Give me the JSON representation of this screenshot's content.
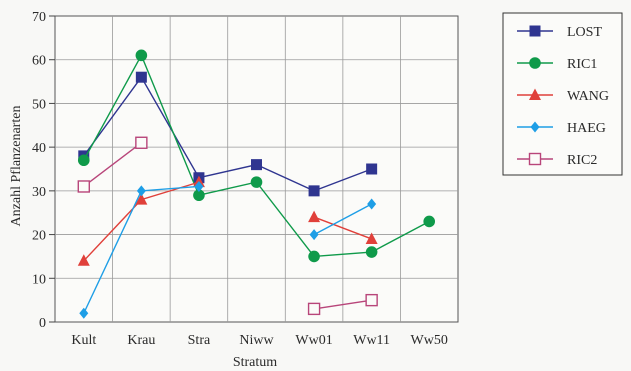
{
  "chart_data": {
    "type": "line",
    "title": "",
    "xlabel": "Stratum",
    "ylabel": "Anzahl Pflanzenarten",
    "categories": [
      "Kult",
      "Krau",
      "Stra",
      "Niww",
      "Ww01",
      "Ww11",
      "Ww50"
    ],
    "ylim": [
      0,
      70
    ],
    "yticks": [
      "0",
      "10",
      "20",
      "30",
      "40",
      "50",
      "60",
      "70"
    ],
    "grid": true,
    "legend_position": "right",
    "series": [
      {
        "name": "LOST",
        "color": "#2f3590",
        "marker": "square",
        "segments": [
          [
            {
              "x": "Kult",
              "y": 38
            },
            {
              "x": "Krau",
              "y": 56
            },
            {
              "x": "Stra",
              "y": 33
            },
            {
              "x": "Niww",
              "y": 36
            },
            {
              "x": "Ww01",
              "y": 30
            },
            {
              "x": "Ww11",
              "y": 35
            }
          ]
        ]
      },
      {
        "name": "RIC1",
        "color": "#0f9a4a",
        "marker": "circle",
        "segments": [
          [
            {
              "x": "Kult",
              "y": 37
            },
            {
              "x": "Krau",
              "y": 61
            },
            {
              "x": "Stra",
              "y": 29
            },
            {
              "x": "Niww",
              "y": 32
            },
            {
              "x": "Ww01",
              "y": 15
            },
            {
              "x": "Ww11",
              "y": 16
            },
            {
              "x": "Ww50",
              "y": 23
            }
          ]
        ]
      },
      {
        "name": "WANG",
        "color": "#e0403a",
        "marker": "triangle",
        "segments": [
          [
            {
              "x": "Kult",
              "y": 14
            },
            {
              "x": "Krau",
              "y": 28
            },
            {
              "x": "Stra",
              "y": 32
            }
          ],
          [
            {
              "x": "Ww01",
              "y": 24
            },
            {
              "x": "Ww11",
              "y": 19
            }
          ]
        ]
      },
      {
        "name": "HAEG",
        "color": "#1e9ee6",
        "marker": "diamond",
        "segments": [
          [
            {
              "x": "Kult",
              "y": 2
            },
            {
              "x": "Krau",
              "y": 30
            },
            {
              "x": "Stra",
              "y": 31
            }
          ],
          [
            {
              "x": "Ww01",
              "y": 20
            },
            {
              "x": "Ww11",
              "y": 27
            }
          ]
        ]
      },
      {
        "name": "RIC2",
        "color": "#b8457a",
        "marker": "open-square",
        "segments": [
          [
            {
              "x": "Kult",
              "y": 31
            },
            {
              "x": "Krau",
              "y": 41
            }
          ],
          [
            {
              "x": "Ww01",
              "y": 3
            },
            {
              "x": "Ww11",
              "y": 5
            }
          ]
        ]
      }
    ]
  }
}
